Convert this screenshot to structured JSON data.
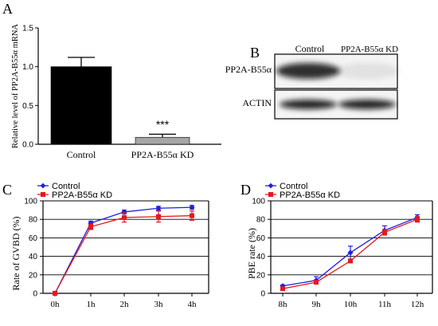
{
  "panels": {
    "A": {
      "letter": "A"
    },
    "B": {
      "letter": "B"
    },
    "C": {
      "letter": "C"
    },
    "D": {
      "letter": "D"
    }
  },
  "western_blot": {
    "columns": [
      "Control",
      "PP2A-B55α KD"
    ],
    "rows": [
      "PP2A-B55α",
      "ACTIN"
    ],
    "band_intensity": [
      [
        0.85,
        0.08
      ],
      [
        0.9,
        0.9
      ]
    ]
  },
  "colors": {
    "control_line": "#1f1fe6",
    "kd_line": "#e31a1c",
    "control_bar": "#000000",
    "kd_bar": "#a6a6a6"
  },
  "chart_data": [
    {
      "type": "bar",
      "categories": [
        "Control",
        "PP2A-B55α KD"
      ],
      "values": [
        1.0,
        0.09
      ],
      "errors": [
        0.12,
        0.04
      ],
      "annotation": "***",
      "ylabel": "Relative level of  PP2A-B55α mRNA",
      "ylim": [
        0,
        1.5
      ],
      "yticks": [
        "0.0",
        "0.5",
        "1.0",
        "1.5"
      ]
    },
    {
      "type": "line",
      "categories": [
        "0h",
        "1h",
        "2h",
        "3h",
        "4h"
      ],
      "series": [
        {
          "name": "Control",
          "values": [
            0,
            76,
            88,
            92,
            93
          ],
          "errors": [
            0,
            2,
            2,
            2,
            2
          ]
        },
        {
          "name": "PP2A-B55α KD",
          "values": [
            0,
            72,
            82,
            83,
            84
          ],
          "errors": [
            0,
            3,
            5,
            6,
            5
          ]
        }
      ],
      "ylabel": "Rate of GVBD (%)",
      "ylim": [
        0,
        100
      ],
      "yticks": [
        "0",
        "20",
        "40",
        "60",
        "80",
        "100"
      ],
      "grid": true
    },
    {
      "type": "line",
      "categories": [
        "8h",
        "9h",
        "10h",
        "11h",
        "12h"
      ],
      "series": [
        {
          "name": "Control",
          "values": [
            8,
            14,
            44,
            68,
            82
          ],
          "errors": [
            1,
            4,
            7,
            5,
            3
          ]
        },
        {
          "name": "PP2A-B55α KD",
          "values": [
            5,
            12,
            35,
            66,
            80
          ],
          "errors": [
            1,
            2,
            2,
            3,
            3
          ]
        }
      ],
      "ylabel": "PBE rate (%)",
      "ylim": [
        0,
        100
      ],
      "yticks": [
        "0",
        "20",
        "40",
        "60",
        "80",
        "100"
      ],
      "grid": true
    }
  ]
}
